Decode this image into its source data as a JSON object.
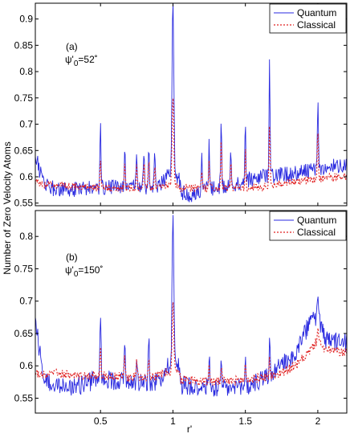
{
  "figure": {
    "ylabel": "Number of Zero Velocity Atoms",
    "xlabel": "r'",
    "legend": [
      "Quantum",
      "Classical"
    ],
    "colors": {
      "quantum": "#2a2ae0",
      "classical": "#e02020",
      "axes": "#000000"
    }
  },
  "chart_data": [
    {
      "type": "line",
      "title": "",
      "annotation": {
        "panel": "(a)",
        "psi": "ψ'",
        "sub": "0",
        "eq": "=52˚"
      },
      "xlabel": "",
      "ylabel": "Number of Zero Velocity Atoms",
      "xlim": [
        0.05,
        2.2
      ],
      "ylim": [
        0.545,
        0.93
      ],
      "xticks": [
        0.5,
        1,
        1.5,
        2
      ],
      "xtick_labels": [
        "",
        "",
        "",
        ""
      ],
      "yticks": [
        0.55,
        0.6,
        0.65,
        0.7,
        0.75,
        0.8,
        0.85,
        0.9
      ],
      "ytick_labels": [
        "0.55",
        "0.6",
        "0.65",
        "0.7",
        "0.75",
        "0.8",
        "0.85",
        "0.9"
      ],
      "legend": "top-right",
      "baseline": {
        "x": [
          0.05,
          0.08,
          0.12,
          0.2,
          0.35,
          0.5,
          0.7,
          0.9,
          0.96,
          1.04,
          1.1,
          1.2,
          1.4,
          1.6,
          1.8,
          2.0,
          2.1,
          2.2
        ],
        "quantum": [
          0.645,
          0.61,
          0.585,
          0.575,
          0.575,
          0.58,
          0.58,
          0.58,
          0.6,
          0.6,
          0.56,
          0.575,
          0.585,
          0.6,
          0.605,
          0.615,
          0.62,
          0.625
        ],
        "classical": [
          0.59,
          0.588,
          0.585,
          0.585,
          0.58,
          0.58,
          0.578,
          0.58,
          0.585,
          0.585,
          0.58,
          0.578,
          0.578,
          0.58,
          0.59,
          0.595,
          0.6,
          0.6
        ]
      },
      "peaks": [
        {
          "x": 0.5,
          "quantum": 0.695,
          "classical": 0.63
        },
        {
          "x": 0.667,
          "quantum": 0.655,
          "classical": 0.625
        },
        {
          "x": 0.75,
          "quantum": 0.64,
          "classical": 0.62
        },
        {
          "x": 0.8,
          "quantum": 0.655,
          "classical": 0.63
        },
        {
          "x": 0.833,
          "quantum": 0.665,
          "classical": 0.635
        },
        {
          "x": 0.875,
          "quantum": 0.645,
          "classical": 0.625
        },
        {
          "x": 1.0,
          "quantum": 0.935,
          "classical": 0.75
        },
        {
          "x": 1.2,
          "quantum": 0.64,
          "classical": 0.615
        },
        {
          "x": 1.25,
          "quantum": 0.665,
          "classical": 0.63
        },
        {
          "x": 1.333,
          "quantum": 0.705,
          "classical": 0.67
        },
        {
          "x": 1.4,
          "quantum": 0.655,
          "classical": 0.63
        },
        {
          "x": 1.5,
          "quantum": 0.695,
          "classical": 0.65
        },
        {
          "x": 1.667,
          "quantum": 0.81,
          "classical": 0.7
        },
        {
          "x": 2.0,
          "quantum": 0.745,
          "classical": 0.695
        }
      ]
    },
    {
      "type": "line",
      "title": "",
      "annotation": {
        "panel": "(b)",
        "psi": "ψ'",
        "sub": "0",
        "eq": "=150˚"
      },
      "xlabel": "r'",
      "ylabel": "Number of Zero Velocity Atoms",
      "xlim": [
        0.05,
        2.2
      ],
      "ylim": [
        0.527,
        0.84
      ],
      "xticks": [
        0.5,
        1,
        1.5,
        2
      ],
      "xtick_labels": [
        "0.5",
        "1",
        "1.5",
        "2"
      ],
      "yticks": [
        0.55,
        0.6,
        0.65,
        0.7,
        0.75,
        0.8
      ],
      "ytick_labels": [
        "0.55",
        "0.6",
        "0.65",
        "0.7",
        "0.75",
        "0.8"
      ],
      "legend": "top-right",
      "baseline": {
        "x": [
          0.05,
          0.08,
          0.12,
          0.2,
          0.35,
          0.5,
          0.7,
          0.9,
          0.96,
          1.04,
          1.1,
          1.3,
          1.5,
          1.7,
          1.85,
          1.95,
          2.0,
          2.05,
          2.2
        ],
        "quantum": [
          0.675,
          0.62,
          0.575,
          0.565,
          0.57,
          0.58,
          0.575,
          0.575,
          0.6,
          0.6,
          0.57,
          0.565,
          0.565,
          0.59,
          0.62,
          0.67,
          0.675,
          0.64,
          0.635
        ],
        "classical": [
          0.59,
          0.588,
          0.585,
          0.588,
          0.585,
          0.585,
          0.582,
          0.585,
          0.59,
          0.59,
          0.578,
          0.575,
          0.578,
          0.585,
          0.6,
          0.625,
          0.64,
          0.625,
          0.62
        ]
      },
      "peaks": [
        {
          "x": 0.5,
          "quantum": 0.69,
          "classical": 0.625
        },
        {
          "x": 0.667,
          "quantum": 0.64,
          "classical": 0.615
        },
        {
          "x": 0.75,
          "quantum": 0.625,
          "classical": 0.61
        },
        {
          "x": 0.833,
          "quantum": 0.645,
          "classical": 0.615
        },
        {
          "x": 1.0,
          "quantum": 0.835,
          "classical": 0.695
        },
        {
          "x": 1.25,
          "quantum": 0.62,
          "classical": 0.6
        },
        {
          "x": 1.333,
          "quantum": 0.615,
          "classical": 0.6
        },
        {
          "x": 1.5,
          "quantum": 0.625,
          "classical": 0.605
        },
        {
          "x": 1.667,
          "quantum": 0.64,
          "classical": 0.61
        },
        {
          "x": 2.0,
          "quantum": 0.725,
          "classical": 0.665
        }
      ]
    }
  ]
}
